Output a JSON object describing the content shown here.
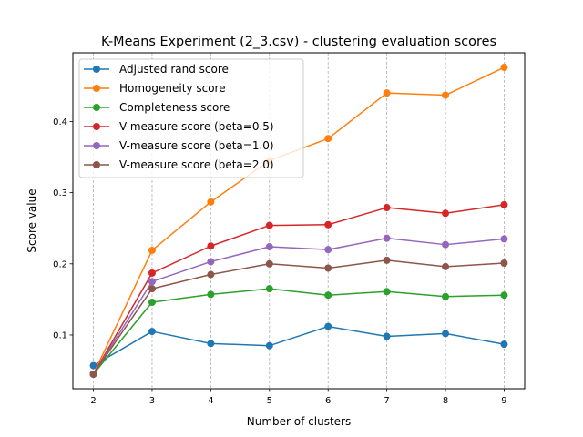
{
  "chart_data": {
    "type": "line",
    "title": "K-Means Experiment (2_3.csv) - clustering evaluation scores",
    "xlabel": "Number of clusters",
    "ylabel": "Score value",
    "x": [
      2,
      3,
      4,
      5,
      6,
      7,
      8,
      9
    ],
    "xlim": [
      1.65,
      9.35
    ],
    "ylim": [
      0.0245,
      0.4965
    ],
    "yticks": [
      0.1,
      0.2,
      0.3,
      0.4
    ],
    "ytick_labels": [
      "0.1",
      "0.2",
      "0.3",
      "0.4"
    ],
    "xtick_labels": [
      "2",
      "3",
      "4",
      "5",
      "6",
      "7",
      "8",
      "9"
    ],
    "grid": "vertical dashed",
    "legend_position": "top-left",
    "series": [
      {
        "name": "Adjusted rand score",
        "color": "#1f77b4",
        "values": [
          0.057,
          0.105,
          0.088,
          0.085,
          0.112,
          0.098,
          0.102,
          0.087
        ]
      },
      {
        "name": "Homogeneity score",
        "color": "#ff7f0e",
        "values": [
          0.045,
          0.219,
          0.287,
          0.345,
          0.376,
          0.44,
          0.437,
          0.476
        ]
      },
      {
        "name": "Completeness score",
        "color": "#2ca02c",
        "values": [
          0.045,
          0.146,
          0.157,
          0.165,
          0.156,
          0.161,
          0.154,
          0.156
        ]
      },
      {
        "name": "V-measure score (beta=0.5)",
        "color": "#d62728",
        "values": [
          0.045,
          0.187,
          0.225,
          0.254,
          0.255,
          0.279,
          0.271,
          0.283
        ]
      },
      {
        "name": "V-measure score (beta=1.0)",
        "color": "#9467bd",
        "values": [
          0.045,
          0.175,
          0.203,
          0.224,
          0.22,
          0.236,
          0.227,
          0.235
        ]
      },
      {
        "name": "V-measure score (beta=2.0)",
        "color": "#8c564b",
        "values": [
          0.045,
          0.165,
          0.185,
          0.2,
          0.194,
          0.205,
          0.196,
          0.201
        ]
      }
    ]
  }
}
